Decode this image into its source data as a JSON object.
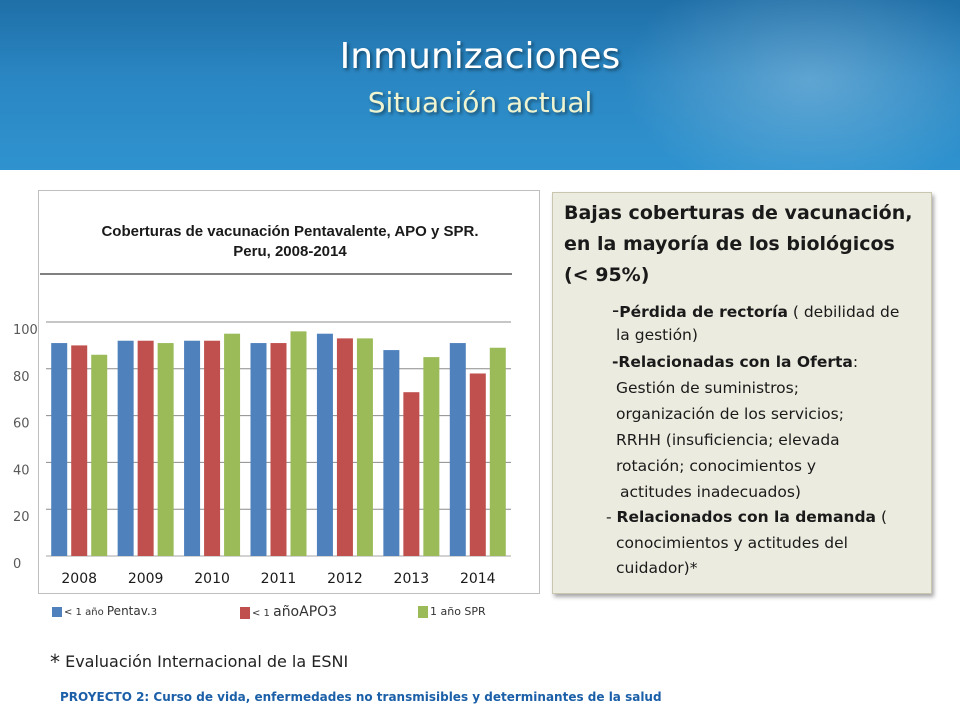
{
  "header": {
    "title": "Inmunizaciones",
    "subtitle": "Situación actual"
  },
  "chart": {
    "title_line1": "Coberturas de vacunación Pentavalente, APO y SPR.",
    "title_line2": "Peru, 2008-2014",
    "legend": {
      "item1_small": "< 1 año ",
      "item1_big": "Pentav.",
      "item1_tail": "3",
      "item2_small": "< 1 ",
      "item2_big": "añoAPO3",
      "item3": "1 año SPR"
    }
  },
  "chart_data": {
    "type": "bar",
    "categories": [
      "2008",
      "2009",
      "2010",
      "2011",
      "2012",
      "2013",
      "2014"
    ],
    "series": [
      {
        "name": "< 1 año Pentav.3",
        "color": "#4f81bd",
        "values": [
          91,
          92,
          92,
          91,
          95,
          88,
          91
        ]
      },
      {
        "name": "< 1 añoAPO3",
        "color": "#c0504d",
        "values": [
          90,
          92,
          92,
          91,
          93,
          70,
          78
        ]
      },
      {
        "name": "1 año SPR",
        "color": "#9bbb59",
        "values": [
          86,
          91,
          95,
          96,
          93,
          85,
          89
        ]
      }
    ],
    "yticks": [
      0,
      20,
      40,
      60,
      80,
      100
    ],
    "ylim": [
      0,
      100
    ],
    "grid": true
  },
  "textbox": {
    "heading": [
      "Bajas coberturas de vacunación,",
      "en la mayoría de los biológicos",
      "(< 95%)"
    ],
    "l1_dash": "-",
    "l1_bold": "Pérdida de rectoría",
    "l1_rest": " ( debilidad de",
    "l2": "la gestión)",
    "l3_bold": "-Relacionadas con la Oferta",
    "l3_rest": ":",
    "l4": "Gestión de suministros;",
    "l5": "organización de los servicios;",
    "l6": "RRHH (insuficiencia; elevada",
    "l7": "rotación; conocimientos y",
    "l8": "actitudes inadecuados)",
    "l9_dash": "- ",
    "l9_bold": "Relacionados con la demanda",
    "l9_rest": " (",
    "l10": "conocimientos y actitudes del",
    "l11": "cuidador)*"
  },
  "footnote": {
    "star": "*",
    "text": " Evaluación Internacional de la ESNI"
  },
  "footer": {
    "text": "PROYECTO 2: Curso de vida, enfermedades no transmisibles y determinantes de la salud"
  }
}
